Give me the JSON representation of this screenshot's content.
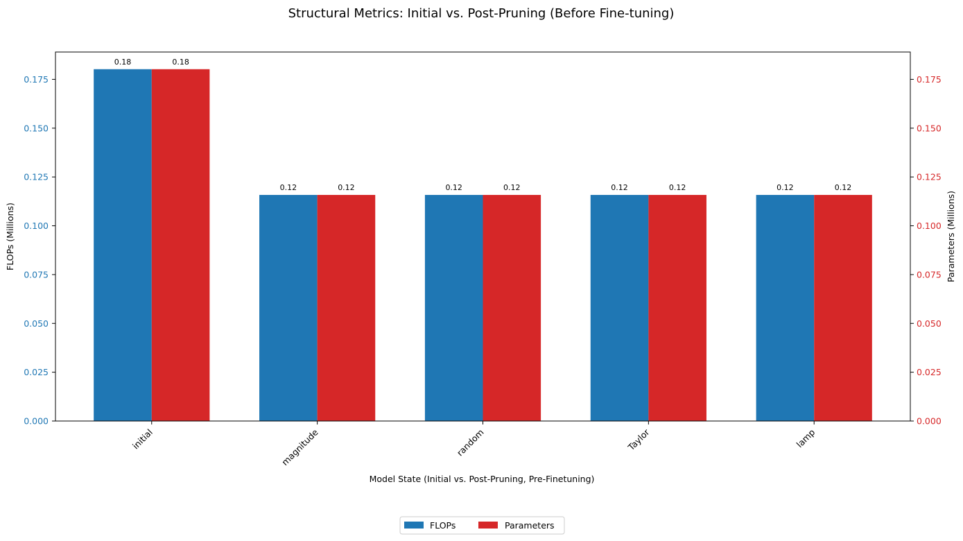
{
  "chart_data": {
    "type": "bar",
    "title": "Structural Metrics: Initial vs. Post-Pruning (Before Fine-tuning)",
    "xlabel": "Model State (Initial vs. Post-Pruning, Pre-Finetuning)",
    "ylabel_left": "FLOPs (Millions)",
    "ylabel_right": "Parameters (Millions)",
    "categories": [
      "initial",
      "magnitude",
      "random",
      "Taylor",
      "lamp"
    ],
    "series": [
      {
        "name": "FLOPs",
        "axis": "left",
        "color": "#1f77b4",
        "values": [
          0.1802,
          0.1158,
          0.1158,
          0.1158,
          0.1158
        ],
        "labels": [
          "0.18",
          "0.12",
          "0.12",
          "0.12",
          "0.12"
        ]
      },
      {
        "name": "Parameters",
        "axis": "right",
        "color": "#d62728",
        "values": [
          0.1802,
          0.1158,
          0.1158,
          0.1158,
          0.1158
        ],
        "labels": [
          "0.18",
          "0.12",
          "0.12",
          "0.12",
          "0.12"
        ]
      }
    ],
    "ylim_left": [
      0,
      0.189
    ],
    "ylim_right": [
      0,
      0.189
    ],
    "yticks": [
      "0.000",
      "0.025",
      "0.050",
      "0.075",
      "0.100",
      "0.125",
      "0.150",
      "0.175"
    ],
    "ytick_values": [
      0,
      0.025,
      0.05,
      0.075,
      0.1,
      0.125,
      0.15,
      0.175
    ],
    "left_axis_color": "#1f77b4",
    "right_axis_color": "#d62728",
    "grid": false,
    "legend_position": "bottom-center"
  }
}
